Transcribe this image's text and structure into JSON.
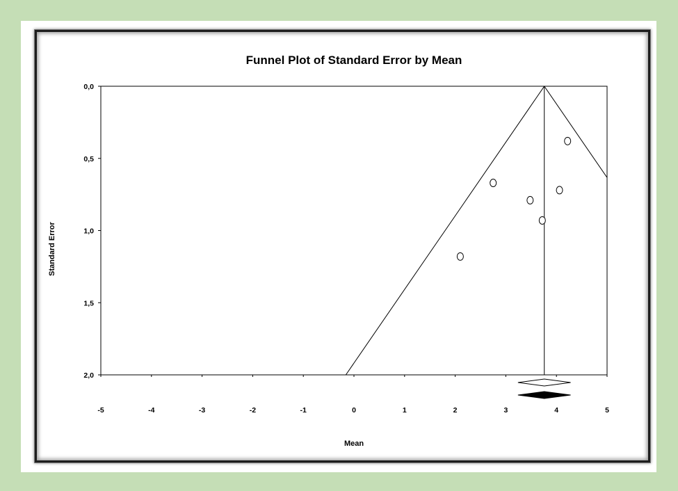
{
  "colors": {
    "background": "#c5deb6",
    "panel": "#ffffff",
    "ink": "#000000"
  },
  "chart_data": {
    "type": "scatter",
    "title": "Funnel Plot of Standard Error by Mean",
    "xlabel": "Mean",
    "ylabel": "Standard Error",
    "xlim": [
      -5,
      5
    ],
    "ylim": [
      0,
      2
    ],
    "y_inverted": true,
    "x_ticks": [
      -5,
      -4,
      -3,
      -2,
      -1,
      0,
      1,
      2,
      3,
      4,
      5
    ],
    "x_tick_labels": [
      "-5",
      "-4",
      "-3",
      "-2",
      "-1",
      "0",
      "1",
      "2",
      "3",
      "4",
      "5"
    ],
    "y_ticks": [
      0,
      0.5,
      1,
      1.5,
      2
    ],
    "y_tick_labels": [
      "0,0",
      "0,5",
      "1,0",
      "1,5",
      "2,0"
    ],
    "grid": false,
    "points": [
      {
        "x": 2.1,
        "y": 1.18
      },
      {
        "x": 2.75,
        "y": 0.67
      },
      {
        "x": 3.48,
        "y": 0.79
      },
      {
        "x": 3.72,
        "y": 0.93
      },
      {
        "x": 4.06,
        "y": 0.72
      },
      {
        "x": 4.22,
        "y": 0.38
      }
    ],
    "funnel": {
      "center": 3.76,
      "slope_per_se": 1.96
    },
    "summary_diamonds": [
      {
        "center": 3.76,
        "lower": 3.24,
        "upper": 4.28,
        "fill": "none"
      },
      {
        "center": 3.76,
        "lower": 3.24,
        "upper": 4.28,
        "fill": "#000000"
      }
    ]
  }
}
